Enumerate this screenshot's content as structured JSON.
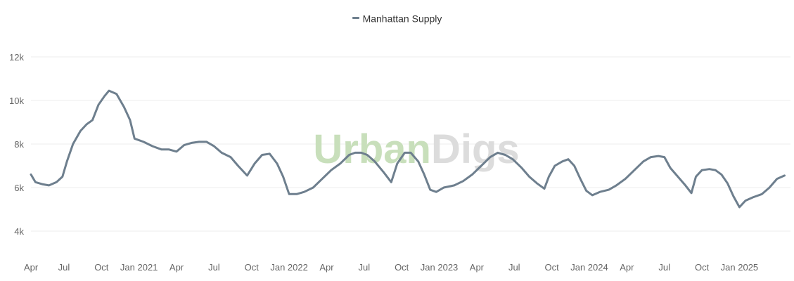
{
  "legend": {
    "label": "Manhattan Supply"
  },
  "watermark": {
    "part1": "Urban",
    "part2": "Digs"
  },
  "colors": {
    "series": "#6e7f8e",
    "grid": "#ececec",
    "tick_text": "#666666"
  },
  "chart_data": {
    "type": "line",
    "title": "",
    "xlabel": "",
    "ylabel": "",
    "ylim": [
      3000,
      12000
    ],
    "yticks": [
      4000,
      6000,
      8000,
      10000,
      12000
    ],
    "ytick_labels": [
      "4k",
      "6k",
      "8k",
      "10k",
      "12k"
    ],
    "xlim": [
      2020.28,
      2025.34
    ],
    "xticks": [
      {
        "x": 2020.25,
        "label": "Apr"
      },
      {
        "x": 2020.5,
        "label": "Jul"
      },
      {
        "x": 2020.75,
        "label": "Oct"
      },
      {
        "x": 2021.0,
        "label": "Jan 2021"
      },
      {
        "x": 2021.25,
        "label": "Apr"
      },
      {
        "x": 2021.5,
        "label": "Jul"
      },
      {
        "x": 2021.75,
        "label": "Oct"
      },
      {
        "x": 2022.0,
        "label": "Jan 2022"
      },
      {
        "x": 2022.25,
        "label": "Apr"
      },
      {
        "x": 2022.5,
        "label": "Jul"
      },
      {
        "x": 2022.75,
        "label": "Oct"
      },
      {
        "x": 2023.0,
        "label": "Jan 2023"
      },
      {
        "x": 2023.25,
        "label": "Apr"
      },
      {
        "x": 2023.5,
        "label": "Jul"
      },
      {
        "x": 2023.75,
        "label": "Oct"
      },
      {
        "x": 2024.0,
        "label": "Jan 2024"
      },
      {
        "x": 2024.25,
        "label": "Apr"
      },
      {
        "x": 2024.5,
        "label": "Jul"
      },
      {
        "x": 2024.75,
        "label": "Oct"
      },
      {
        "x": 2025.0,
        "label": "Jan 2025"
      }
    ],
    "grid": true,
    "legend_position": "top-center",
    "series": [
      {
        "name": "Manhattan Supply",
        "points": [
          [
            2020.28,
            6600
          ],
          [
            2020.31,
            6250
          ],
          [
            2020.36,
            6150
          ],
          [
            2020.4,
            6100
          ],
          [
            2020.45,
            6250
          ],
          [
            2020.49,
            6500
          ],
          [
            2020.52,
            7200
          ],
          [
            2020.56,
            8000
          ],
          [
            2020.61,
            8600
          ],
          [
            2020.65,
            8900
          ],
          [
            2020.69,
            9100
          ],
          [
            2020.73,
            9800
          ],
          [
            2020.77,
            10200
          ],
          [
            2020.8,
            10450
          ],
          [
            2020.85,
            10300
          ],
          [
            2020.9,
            9700
          ],
          [
            2020.94,
            9100
          ],
          [
            2020.97,
            8250
          ],
          [
            2021.03,
            8100
          ],
          [
            2021.09,
            7900
          ],
          [
            2021.15,
            7750
          ],
          [
            2021.2,
            7750
          ],
          [
            2021.25,
            7650
          ],
          [
            2021.3,
            7950
          ],
          [
            2021.35,
            8050
          ],
          [
            2021.4,
            8100
          ],
          [
            2021.45,
            8100
          ],
          [
            2021.5,
            7900
          ],
          [
            2021.55,
            7600
          ],
          [
            2021.61,
            7400
          ],
          [
            2021.66,
            7000
          ],
          [
            2021.72,
            6550
          ],
          [
            2021.77,
            7100
          ],
          [
            2021.82,
            7500
          ],
          [
            2021.87,
            7550
          ],
          [
            2021.92,
            7100
          ],
          [
            2021.96,
            6500
          ],
          [
            2022.0,
            5700
          ],
          [
            2022.05,
            5700
          ],
          [
            2022.1,
            5800
          ],
          [
            2022.16,
            6000
          ],
          [
            2022.22,
            6400
          ],
          [
            2022.28,
            6800
          ],
          [
            2022.34,
            7100
          ],
          [
            2022.4,
            7500
          ],
          [
            2022.44,
            7600
          ],
          [
            2022.48,
            7600
          ],
          [
            2022.52,
            7500
          ],
          [
            2022.57,
            7200
          ],
          [
            2022.63,
            6700
          ],
          [
            2022.68,
            6250
          ],
          [
            2022.72,
            7100
          ],
          [
            2022.77,
            7600
          ],
          [
            2022.81,
            7600
          ],
          [
            2022.86,
            7200
          ],
          [
            2022.9,
            6600
          ],
          [
            2022.94,
            5900
          ],
          [
            2022.98,
            5800
          ],
          [
            2023.03,
            6000
          ],
          [
            2023.1,
            6100
          ],
          [
            2023.16,
            6300
          ],
          [
            2023.22,
            6600
          ],
          [
            2023.28,
            7000
          ],
          [
            2023.34,
            7400
          ],
          [
            2023.39,
            7600
          ],
          [
            2023.44,
            7500
          ],
          [
            2023.49,
            7300
          ],
          [
            2023.55,
            6900
          ],
          [
            2023.6,
            6500
          ],
          [
            2023.65,
            6200
          ],
          [
            2023.7,
            5950
          ],
          [
            2023.73,
            6500
          ],
          [
            2023.77,
            7000
          ],
          [
            2023.82,
            7200
          ],
          [
            2023.86,
            7300
          ],
          [
            2023.9,
            7000
          ],
          [
            2023.94,
            6400
          ],
          [
            2023.98,
            5850
          ],
          [
            2024.02,
            5650
          ],
          [
            2024.07,
            5800
          ],
          [
            2024.13,
            5900
          ],
          [
            2024.18,
            6100
          ],
          [
            2024.24,
            6400
          ],
          [
            2024.3,
            6800
          ],
          [
            2024.36,
            7200
          ],
          [
            2024.41,
            7400
          ],
          [
            2024.46,
            7450
          ],
          [
            2024.5,
            7400
          ],
          [
            2024.54,
            6900
          ],
          [
            2024.59,
            6500
          ],
          [
            2024.64,
            6100
          ],
          [
            2024.68,
            5750
          ],
          [
            2024.71,
            6500
          ],
          [
            2024.75,
            6800
          ],
          [
            2024.8,
            6850
          ],
          [
            2024.84,
            6800
          ],
          [
            2024.88,
            6600
          ],
          [
            2024.92,
            6200
          ],
          [
            2024.96,
            5600
          ],
          [
            2025.0,
            5100
          ],
          [
            2025.04,
            5400
          ],
          [
            2025.09,
            5550
          ],
          [
            2025.15,
            5700
          ],
          [
            2025.2,
            6000
          ],
          [
            2025.25,
            6400
          ],
          [
            2025.3,
            6550
          ]
        ]
      }
    ]
  }
}
